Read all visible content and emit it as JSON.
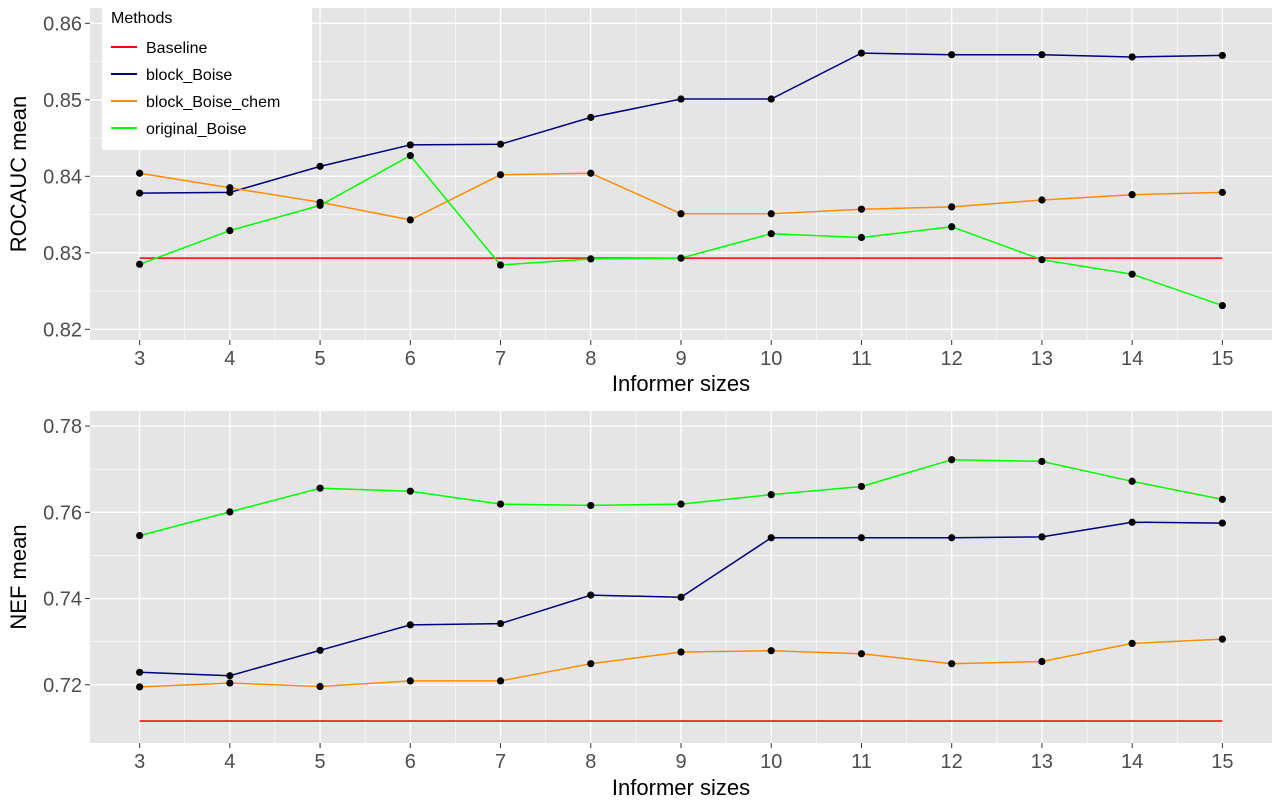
{
  "legend": {
    "title": "Methods",
    "placement": "inside-top-left",
    "entries": [
      {
        "name": "Baseline",
        "color": "#ff0000"
      },
      {
        "name": "block_Boise",
        "color": "#000080"
      },
      {
        "name": "block_Boise_chem",
        "color": "#ff8c00"
      },
      {
        "name": "original_Boise",
        "color": "#00ff00"
      }
    ]
  },
  "colors": {
    "panel_background": "#e5e5e5",
    "grid": "#ffffff",
    "point": "#000000"
  },
  "chart_data": [
    {
      "type": "line",
      "xlabel": "Informer sizes",
      "ylabel": "ROCAUC mean",
      "x": [
        3,
        4,
        5,
        6,
        7,
        8,
        9,
        10,
        11,
        12,
        13,
        14,
        15
      ],
      "xlim": [
        2.45,
        15.55
      ],
      "ylim": [
        0.8186,
        0.862
      ],
      "yticks": [
        0.82,
        0.83,
        0.84,
        0.85,
        0.86
      ],
      "ytick_labels": [
        "0.82",
        "0.83",
        "0.84",
        "0.85",
        "0.86"
      ],
      "xtick_labels": [
        "3",
        "4",
        "5",
        "6",
        "7",
        "8",
        "9",
        "10",
        "11",
        "12",
        "13",
        "14",
        "15"
      ],
      "grid": true,
      "series": [
        {
          "name": "Baseline",
          "color": "#ff0000",
          "markers": false,
          "values": [
            0.8293,
            0.8293,
            0.8293,
            0.8293,
            0.8293,
            0.8293,
            0.8293,
            0.8293,
            0.8293,
            0.8293,
            0.8293,
            0.8293,
            0.8293
          ]
        },
        {
          "name": "block_Boise",
          "color": "#000080",
          "markers": true,
          "values": [
            0.8378,
            0.8379,
            0.8413,
            0.8441,
            0.8442,
            0.8477,
            0.8501,
            0.8501,
            0.8561,
            0.8559,
            0.8559,
            0.8556,
            0.8558
          ]
        },
        {
          "name": "block_Boise_chem",
          "color": "#ff8c00",
          "markers": true,
          "values": [
            0.8404,
            0.8385,
            0.8366,
            0.8343,
            0.8402,
            0.8404,
            0.8351,
            0.8351,
            0.8357,
            0.836,
            0.8369,
            0.8376,
            0.8379
          ]
        },
        {
          "name": "original_Boise",
          "color": "#00ff00",
          "markers": true,
          "values": [
            0.8285,
            0.8329,
            0.8362,
            0.8427,
            0.8284,
            0.8292,
            0.8293,
            0.8325,
            0.832,
            0.8334,
            0.8291,
            0.8272,
            0.8231
          ]
        }
      ]
    },
    {
      "type": "line",
      "xlabel": "Informer sizes",
      "ylabel": "NEF mean",
      "x": [
        3,
        4,
        5,
        6,
        7,
        8,
        9,
        10,
        11,
        12,
        13,
        14,
        15
      ],
      "xlim": [
        2.45,
        15.55
      ],
      "ylim": [
        0.7065,
        0.7835
      ],
      "yticks": [
        0.72,
        0.74,
        0.76,
        0.78
      ],
      "ytick_labels": [
        "0.72",
        "0.74",
        "0.76",
        "0.78"
      ],
      "xtick_labels": [
        "3",
        "4",
        "5",
        "6",
        "7",
        "8",
        "9",
        "10",
        "11",
        "12",
        "13",
        "14",
        "15"
      ],
      "grid": true,
      "series": [
        {
          "name": "Baseline",
          "color": "#ff0000",
          "markers": false,
          "values": [
            0.7116,
            0.7116,
            0.7116,
            0.7116,
            0.7116,
            0.7116,
            0.7116,
            0.7116,
            0.7116,
            0.7116,
            0.7116,
            0.7116,
            0.7116
          ]
        },
        {
          "name": "block_Boise",
          "color": "#000080",
          "markers": true,
          "values": [
            0.7229,
            0.7221,
            0.728,
            0.7339,
            0.7342,
            0.7408,
            0.7403,
            0.7541,
            0.7541,
            0.7541,
            0.7543,
            0.7577,
            0.7575
          ]
        },
        {
          "name": "block_Boise_chem",
          "color": "#ff8c00",
          "markers": true,
          "values": [
            0.7195,
            0.7204,
            0.7196,
            0.7209,
            0.7209,
            0.7249,
            0.7276,
            0.7279,
            0.7272,
            0.7249,
            0.7254,
            0.7296,
            0.7306
          ]
        },
        {
          "name": "original_Boise",
          "color": "#00ff00",
          "markers": true,
          "values": [
            0.7546,
            0.7601,
            0.7656,
            0.7649,
            0.7619,
            0.7616,
            0.7619,
            0.7641,
            0.766,
            0.7722,
            0.7718,
            0.7672,
            0.763
          ]
        }
      ]
    }
  ]
}
